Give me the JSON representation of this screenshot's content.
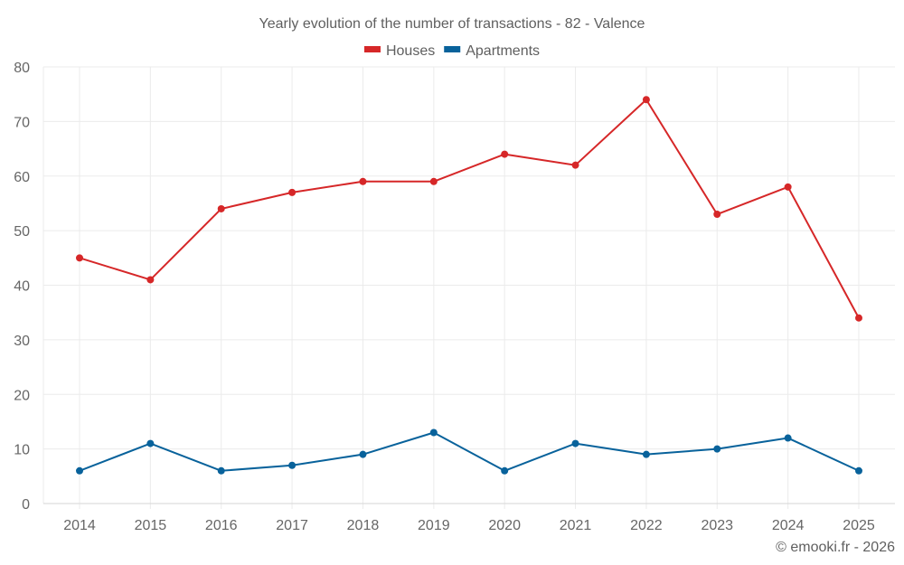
{
  "chart_data": {
    "type": "line",
    "title": "Yearly evolution of the number of transactions - 82 - Valence",
    "xlabel": "",
    "ylabel": "",
    "x": [
      "2014",
      "2015",
      "2016",
      "2017",
      "2018",
      "2019",
      "2020",
      "2021",
      "2022",
      "2023",
      "2024",
      "2025"
    ],
    "ylim": [
      0,
      80
    ],
    "yticks": [
      "0",
      "10",
      "20",
      "30",
      "40",
      "50",
      "60",
      "70",
      "80"
    ],
    "grid": true,
    "legend_position": "top-center",
    "series": [
      {
        "name": "Houses",
        "color": "#d62728",
        "values": [
          45,
          41,
          54,
          57,
          59,
          59,
          64,
          62,
          74,
          53,
          58,
          34
        ]
      },
      {
        "name": "Apartments",
        "color": "#08629b",
        "values": [
          6,
          11,
          6,
          7,
          9,
          13,
          6,
          11,
          9,
          10,
          12,
          6
        ]
      }
    ],
    "credit": "© emooki.fr - 2026"
  }
}
